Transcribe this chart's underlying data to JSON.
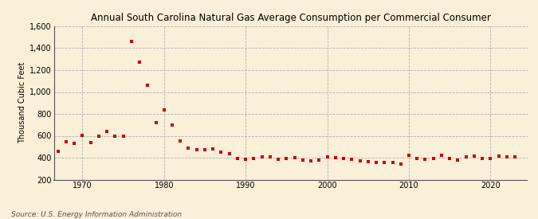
{
  "title": "Annual South Carolina Natural Gas Average Consumption per Commercial Consumer",
  "ylabel": "Thousand Cubic Feet",
  "source": "Source: U.S. Energy Information Administration",
  "background_color": "#faefd8",
  "plot_background_color": "#faefd8",
  "marker_color": "#cc0000",
  "marker_size": 3.5,
  "xlim": [
    1966.5,
    2024.5
  ],
  "ylim": [
    200,
    1600
  ],
  "yticks": [
    200,
    400,
    600,
    800,
    1000,
    1200,
    1400,
    1600
  ],
  "xticks": [
    1970,
    1980,
    1990,
    2000,
    2010,
    2020
  ],
  "years": [
    1967,
    1968,
    1969,
    1970,
    1971,
    1972,
    1973,
    1974,
    1975,
    1976,
    1977,
    1978,
    1979,
    1980,
    1981,
    1982,
    1983,
    1984,
    1985,
    1986,
    1987,
    1988,
    1989,
    1990,
    1991,
    1992,
    1993,
    1994,
    1995,
    1996,
    1997,
    1998,
    1999,
    2000,
    2001,
    2002,
    2003,
    2004,
    2005,
    2006,
    2007,
    2008,
    2009,
    2010,
    2011,
    2012,
    2013,
    2014,
    2015,
    2016,
    2017,
    2018,
    2019,
    2020,
    2021,
    2022,
    2023
  ],
  "values": [
    460,
    545,
    530,
    605,
    535,
    600,
    640,
    595,
    595,
    1460,
    1275,
    1065,
    720,
    840,
    695,
    555,
    490,
    470,
    475,
    480,
    450,
    435,
    390,
    385,
    395,
    405,
    410,
    385,
    390,
    400,
    375,
    370,
    380,
    405,
    400,
    390,
    385,
    370,
    365,
    360,
    355,
    355,
    345,
    420,
    395,
    385,
    395,
    425,
    390,
    380,
    410,
    415,
    395,
    390,
    415,
    410,
    405
  ]
}
